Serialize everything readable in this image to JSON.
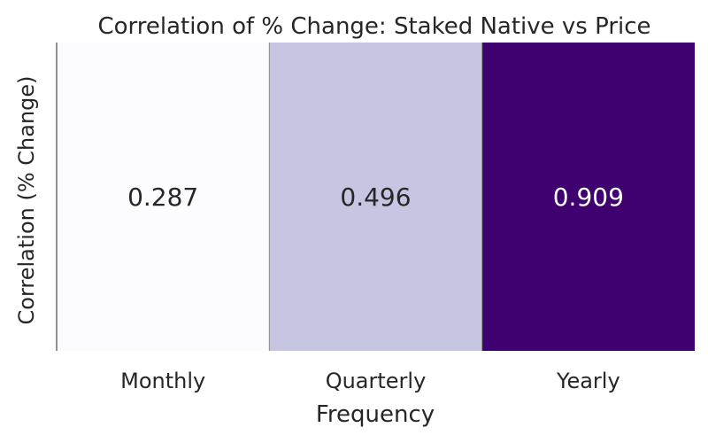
{
  "chart_data": {
    "type": "heatmap",
    "title": "Correlation of % Change: Staked Native vs Price",
    "xlabel": "Frequency",
    "ylabel": "Correlation (% Change)",
    "categories": [
      "Monthly",
      "Quarterly",
      "Yearly"
    ],
    "values": [
      0.287,
      0.496,
      0.909
    ],
    "value_labels": [
      "0.287",
      "0.496",
      "0.909"
    ],
    "colormap": "Purples",
    "grid": false,
    "legend": "none"
  }
}
